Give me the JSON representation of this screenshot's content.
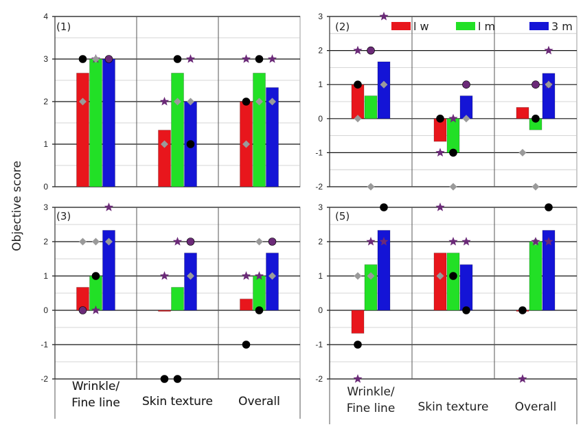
{
  "figure": {
    "ylabel": "Objective score",
    "legend": [
      {
        "label": "l w",
        "color": "#e8161c"
      },
      {
        "label": "l m",
        "color": "#22e026"
      },
      {
        "label": "3 m",
        "color": "#1414d6"
      }
    ],
    "marker_colors": {
      "circle": "#000000",
      "diamond": "#9a9a9a",
      "star": "#6b2a78",
      "circle_purple": "#6b2a78"
    }
  },
  "chart_data": [
    {
      "type": "bar",
      "panel_label": "(1)",
      "categories": [
        "Wrinkle/\nFine line",
        "Skin texture",
        "Overall"
      ],
      "ylim": [
        0,
        4
      ],
      "yticks": [
        0,
        1,
        2,
        3,
        4
      ],
      "grid": true,
      "series": [
        {
          "name": "l w",
          "values": [
            2.67,
            1.33,
            2.0
          ]
        },
        {
          "name": "l m",
          "values": [
            3.0,
            2.67,
            2.67
          ]
        },
        {
          "name": "3 m",
          "values": [
            3.0,
            2.0,
            2.33
          ]
        }
      ],
      "markers": [
        {
          "cat": 0,
          "group": 0,
          "shape": "circle",
          "y": 3
        },
        {
          "cat": 0,
          "group": 0,
          "shape": "diamond",
          "y": 2
        },
        {
          "cat": 0,
          "group": 1,
          "shape": "star",
          "y": 3
        },
        {
          "cat": 0,
          "group": 1,
          "shape": "diamond",
          "y": 3
        },
        {
          "cat": 0,
          "group": 2,
          "shape": "circle_purple",
          "y": 3
        },
        {
          "cat": 1,
          "group": 0,
          "shape": "star",
          "y": 2
        },
        {
          "cat": 1,
          "group": 0,
          "shape": "diamond",
          "y": 1
        },
        {
          "cat": 1,
          "group": 1,
          "shape": "circle",
          "y": 3
        },
        {
          "cat": 1,
          "group": 1,
          "shape": "diamond",
          "y": 2
        },
        {
          "cat": 1,
          "group": 2,
          "shape": "star",
          "y": 3
        },
        {
          "cat": 1,
          "group": 2,
          "shape": "circle",
          "y": 1
        },
        {
          "cat": 1,
          "group": 2,
          "shape": "diamond",
          "y": 2
        },
        {
          "cat": 2,
          "group": 0,
          "shape": "star",
          "y": 3
        },
        {
          "cat": 2,
          "group": 0,
          "shape": "circle",
          "y": 2
        },
        {
          "cat": 2,
          "group": 0,
          "shape": "diamond",
          "y": 1
        },
        {
          "cat": 2,
          "group": 1,
          "shape": "circle",
          "y": 3
        },
        {
          "cat": 2,
          "group": 1,
          "shape": "diamond",
          "y": 2
        },
        {
          "cat": 2,
          "group": 2,
          "shape": "star",
          "y": 3
        },
        {
          "cat": 2,
          "group": 2,
          "shape": "diamond",
          "y": 2
        }
      ]
    },
    {
      "type": "bar",
      "panel_label": "(2)",
      "categories": [
        "Wrinkle/\nFine line",
        "Skin texture",
        "Overall"
      ],
      "ylim": [
        -2,
        3
      ],
      "yticks": [
        -2,
        -1,
        0,
        1,
        2,
        3
      ],
      "grid": true,
      "series": [
        {
          "name": "l w",
          "values": [
            1.0,
            -0.67,
            0.33
          ]
        },
        {
          "name": "l m",
          "values": [
            0.67,
            -1.0,
            -0.33
          ]
        },
        {
          "name": "3 m",
          "values": [
            1.67,
            0.67,
            1.33
          ]
        }
      ],
      "markers": [
        {
          "cat": 0,
          "group": 0,
          "shape": "star",
          "y": 2
        },
        {
          "cat": 0,
          "group": 0,
          "shape": "circle",
          "y": 1
        },
        {
          "cat": 0,
          "group": 0,
          "shape": "diamond",
          "y": 0
        },
        {
          "cat": 0,
          "group": 1,
          "shape": "circle_purple",
          "y": 2
        },
        {
          "cat": 0,
          "group": 1,
          "shape": "diamond",
          "y": -2
        },
        {
          "cat": 0,
          "group": 2,
          "shape": "star",
          "y": 3
        },
        {
          "cat": 0,
          "group": 2,
          "shape": "diamond",
          "y": 1
        },
        {
          "cat": 1,
          "group": 0,
          "shape": "star",
          "y": -1
        },
        {
          "cat": 1,
          "group": 0,
          "shape": "circle",
          "y": 0
        },
        {
          "cat": 1,
          "group": 1,
          "shape": "star",
          "y": 0
        },
        {
          "cat": 1,
          "group": 1,
          "shape": "circle",
          "y": -1
        },
        {
          "cat": 1,
          "group": 1,
          "shape": "diamond",
          "y": -2
        },
        {
          "cat": 1,
          "group": 2,
          "shape": "circle_purple",
          "y": 1
        },
        {
          "cat": 1,
          "group": 2,
          "shape": "diamond",
          "y": 0
        },
        {
          "cat": 2,
          "group": 0,
          "shape": "diamond",
          "y": -1
        },
        {
          "cat": 2,
          "group": 1,
          "shape": "circle_purple",
          "y": 1
        },
        {
          "cat": 2,
          "group": 1,
          "shape": "circle",
          "y": 0
        },
        {
          "cat": 2,
          "group": 1,
          "shape": "diamond",
          "y": -2
        },
        {
          "cat": 2,
          "group": 2,
          "shape": "star",
          "y": 1
        },
        {
          "cat": 2,
          "group": 2,
          "shape": "diamond",
          "y": 1
        },
        {
          "cat": 2,
          "group": 2,
          "shape": "star",
          "y": 2
        }
      ]
    },
    {
      "type": "bar",
      "panel_label": "(3)",
      "categories": [
        "Wrinkle/\nFine line",
        "Skin texture",
        "Overall"
      ],
      "ylim": [
        -2,
        3
      ],
      "yticks": [
        -2,
        -1,
        0,
        1,
        2,
        3
      ],
      "grid": true,
      "series": [
        {
          "name": "l w",
          "values": [
            0.67,
            0.0,
            0.33
          ]
        },
        {
          "name": "l m",
          "values": [
            1.0,
            0.67,
            1.0
          ]
        },
        {
          "name": "3 m",
          "values": [
            2.33,
            1.67,
            1.67
          ]
        }
      ],
      "markers": [
        {
          "cat": 0,
          "group": 0,
          "shape": "diamond",
          "y": 2
        },
        {
          "cat": 0,
          "group": 0,
          "shape": "circle_purple",
          "y": 0
        },
        {
          "cat": 0,
          "group": 1,
          "shape": "diamond",
          "y": 2
        },
        {
          "cat": 0,
          "group": 1,
          "shape": "circle",
          "y": 1
        },
        {
          "cat": 0,
          "group": 1,
          "shape": "star",
          "y": 0
        },
        {
          "cat": 0,
          "group": 2,
          "shape": "star",
          "y": 3
        },
        {
          "cat": 0,
          "group": 2,
          "shape": "diamond",
          "y": 2
        },
        {
          "cat": 1,
          "group": 0,
          "shape": "star",
          "y": 1
        },
        {
          "cat": 1,
          "group": 0,
          "shape": "circle",
          "y": -2
        },
        {
          "cat": 1,
          "group": 1,
          "shape": "star",
          "y": 2
        },
        {
          "cat": 1,
          "group": 1,
          "shape": "circle",
          "y": -2
        },
        {
          "cat": 1,
          "group": 2,
          "shape": "circle_purple",
          "y": 2
        },
        {
          "cat": 1,
          "group": 2,
          "shape": "diamond",
          "y": 1
        },
        {
          "cat": 2,
          "group": 0,
          "shape": "star",
          "y": 1
        },
        {
          "cat": 2,
          "group": 0,
          "shape": "circle",
          "y": -1
        },
        {
          "cat": 2,
          "group": 1,
          "shape": "star",
          "y": 1
        },
        {
          "cat": 2,
          "group": 1,
          "shape": "diamond",
          "y": 2
        },
        {
          "cat": 2,
          "group": 1,
          "shape": "circle",
          "y": 0
        },
        {
          "cat": 2,
          "group": 2,
          "shape": "circle_purple",
          "y": 2
        },
        {
          "cat": 2,
          "group": 2,
          "shape": "diamond",
          "y": 1
        }
      ]
    },
    {
      "type": "bar",
      "panel_label": "(5)",
      "categories": [
        "Wrinkle/\nFine line",
        "Skin texture",
        "Overall"
      ],
      "ylim": [
        -2,
        3
      ],
      "yticks": [
        -2,
        -1,
        0,
        1,
        2,
        3
      ],
      "grid": true,
      "series": [
        {
          "name": "l w",
          "values": [
            -0.67,
            1.67,
            0.0
          ]
        },
        {
          "name": "l m",
          "values": [
            1.33,
            1.67,
            2.0
          ]
        },
        {
          "name": "3 m",
          "values": [
            2.33,
            1.33,
            2.33
          ]
        }
      ],
      "markers": [
        {
          "cat": 0,
          "group": 0,
          "shape": "diamond",
          "y": 1
        },
        {
          "cat": 0,
          "group": 0,
          "shape": "circle",
          "y": -1
        },
        {
          "cat": 0,
          "group": 0,
          "shape": "star",
          "y": -2
        },
        {
          "cat": 0,
          "group": 1,
          "shape": "star",
          "y": 2
        },
        {
          "cat": 0,
          "group": 1,
          "shape": "diamond",
          "y": 1
        },
        {
          "cat": 0,
          "group": 2,
          "shape": "circle",
          "y": 3
        },
        {
          "cat": 0,
          "group": 2,
          "shape": "star",
          "y": 2
        },
        {
          "cat": 1,
          "group": 0,
          "shape": "star",
          "y": 3
        },
        {
          "cat": 1,
          "group": 0,
          "shape": "diamond",
          "y": 1
        },
        {
          "cat": 1,
          "group": 1,
          "shape": "star",
          "y": 2
        },
        {
          "cat": 1,
          "group": 1,
          "shape": "circle",
          "y": 1
        },
        {
          "cat": 1,
          "group": 2,
          "shape": "star",
          "y": 2
        },
        {
          "cat": 1,
          "group": 2,
          "shape": "circle",
          "y": 0
        },
        {
          "cat": 2,
          "group": 0,
          "shape": "circle",
          "y": 0
        },
        {
          "cat": 2,
          "group": 0,
          "shape": "star",
          "y": -2
        },
        {
          "cat": 2,
          "group": 1,
          "shape": "diamond",
          "y": 2
        },
        {
          "cat": 2,
          "group": 1,
          "shape": "star",
          "y": 2
        },
        {
          "cat": 2,
          "group": 2,
          "shape": "circle",
          "y": 3
        },
        {
          "cat": 2,
          "group": 2,
          "shape": "star",
          "y": 2
        }
      ]
    }
  ]
}
